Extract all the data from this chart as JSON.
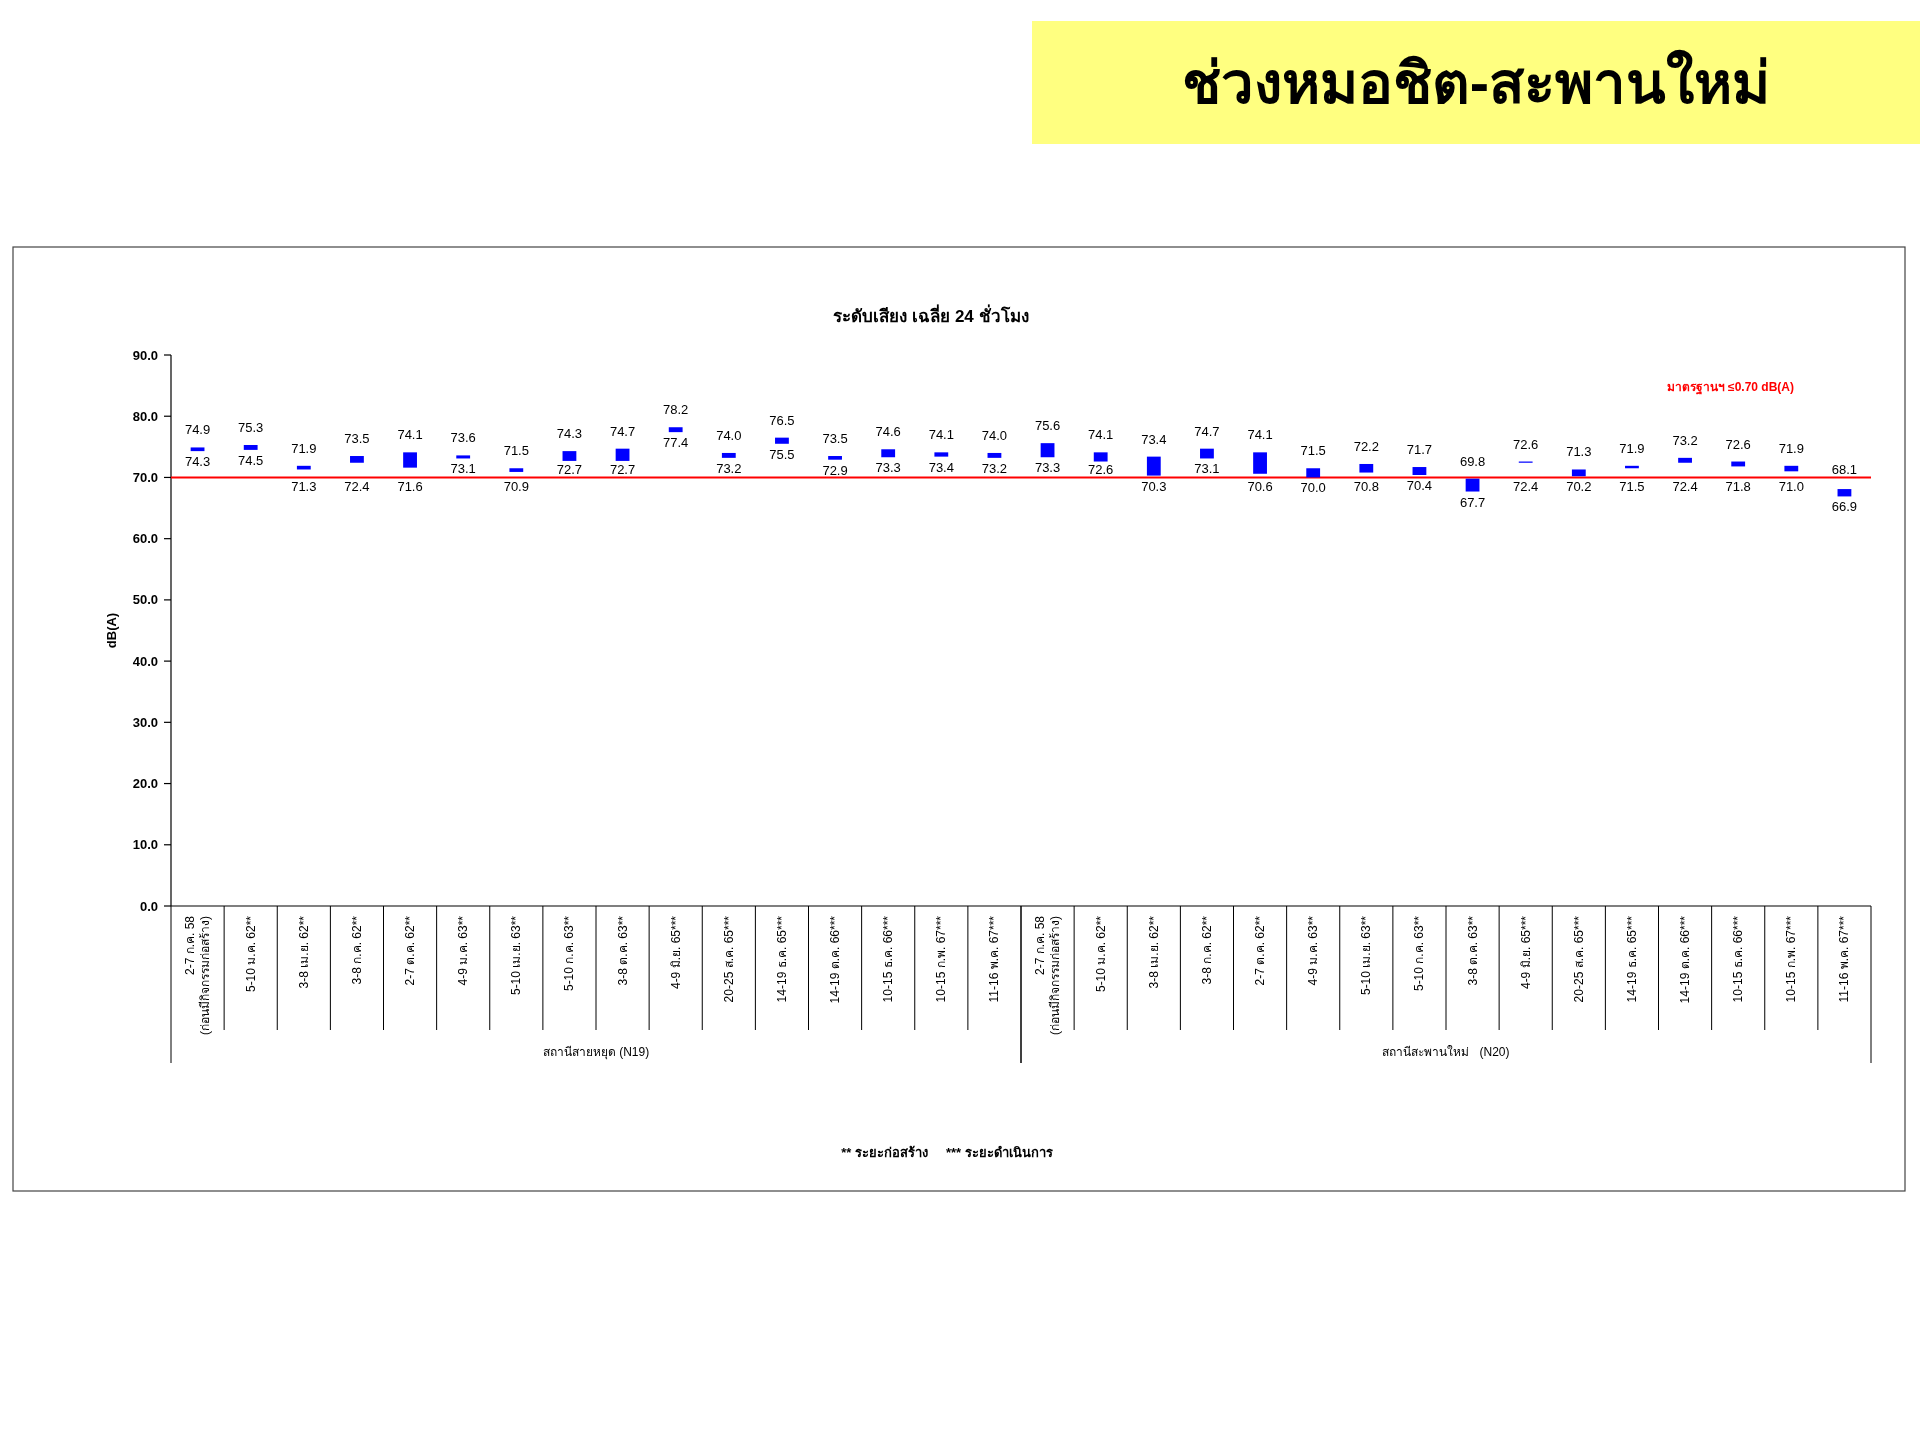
{
  "chart_data": [
    {
      "type": "bar",
      "subtitle": "ระดับเสียง เฉลี่ย 24 ชั่วโมง",
      "ylabel": "dB(A)",
      "xlabel": "สถานีสายหยุด (N19)",
      "categories": [
        "2-7 ก.ค. 58\n(ก่อนมีกิจกรรมก่อสร้าง)",
        "5-10 ม.ค. 62**",
        "3-8 เม.ย. 62**",
        "3-8 ก.ค. 62**",
        "2-7 ต.ค. 62**",
        "4-9 ม.ค. 63**",
        "5-10 เม.ย. 63**",
        "5-10 ก.ค. 63**",
        "3-8 ต.ค. 63**",
        "4-9 มิ.ย. 65***",
        "20-25 ส.ค. 65***",
        "14-19 ธ.ค. 65***",
        "14-19 ต.ค. 66***",
        "10-15 ธ.ค. 66***",
        "10-15 ก.พ. 67***",
        "11-16 พ.ค. 67***"
      ],
      "color": "#0000ff",
      "base": [
        74.3,
        74.5,
        71.3,
        72.4,
        71.6,
        73.1,
        70.9,
        72.7,
        72.7,
        77.4,
        73.2,
        75.5,
        72.9,
        73.3,
        73.4,
        73.2
      ],
      "values": [
        0.6,
        0.8,
        0.6,
        1.1,
        2.5,
        0.5,
        0.6,
        1.6,
        2.0,
        0.8,
        0.8,
        1.0,
        0.6,
        1.3,
        0.7,
        0.8
      ],
      "value_labels": [
        "74.9",
        "75.3",
        "71.9",
        "73.5",
        "74.1",
        "73.6",
        "71.5",
        "74.3",
        "74.7",
        "78.2",
        "74.0",
        "76.5",
        "73.5",
        "74.6",
        "74.1",
        "74.0"
      ],
      "ylim": [
        0,
        90
      ],
      "yticks": [
        {
          "value": 0,
          "label": "0.0"
        },
        {
          "value": 10,
          "label": "10.0"
        },
        {
          "value": 20,
          "label": "20.0"
        },
        {
          "value": 30,
          "label": "30.0"
        },
        {
          "value": 40,
          "label": "40.0"
        },
        {
          "value": 50,
          "label": "50.0"
        },
        {
          "value": 60,
          "label": "60.0"
        },
        {
          "value": 70,
          "label": "70.0"
        },
        {
          "value": 80,
          "label": "80.0"
        },
        {
          "value": 90,
          "label": "90.0"
        }
      ],
      "ref_lines": [
        {
          "axis": "y",
          "value": 70,
          "color": "#ff0000"
        }
      ],
      "annotations": [
        {
          "text": "74.3",
          "x": "2-7 ก.ค. 58\n(ก่อนมีกิจกรรมก่อสร้าง)",
          "y": 74.3
        },
        {
          "text": "74.5",
          "x": "5-10 ม.ค. 62**",
          "y": 74.5
        },
        {
          "text": "71.3",
          "x": "3-8 เม.ย. 62**",
          "y": 71.3
        },
        {
          "text": "72.4",
          "x": "3-8 ก.ค. 62**",
          "y": 72.4
        },
        {
          "text": "71.6",
          "x": "2-7 ต.ค. 62**",
          "y": 71.6
        },
        {
          "text": "73.1",
          "x": "4-9 ม.ค. 63**",
          "y": 73.1
        },
        {
          "text": "70.9",
          "x": "5-10 เม.ย. 63**",
          "y": 70.9
        },
        {
          "text": "72.7",
          "x": "5-10 ก.ค. 63**",
          "y": 72.7
        },
        {
          "text": "72.7",
          "x": "3-8 ต.ค. 63**",
          "y": 72.7
        },
        {
          "text": "77.4",
          "x": "4-9 มิ.ย. 65***",
          "y": 77.4
        },
        {
          "text": "73.2",
          "x": "20-25 ส.ค. 65***",
          "y": 73.2
        },
        {
          "text": "75.5",
          "x": "14-19 ธ.ค. 65***",
          "y": 75.5
        },
        {
          "text": "72.9",
          "x": "14-19 ต.ค. 66***",
          "y": 72.9
        },
        {
          "text": "73.3",
          "x": "10-15 ธ.ค. 66***",
          "y": 73.3
        },
        {
          "text": "73.4",
          "x": "10-15 ก.พ. 67***",
          "y": 73.4
        },
        {
          "text": "73.2",
          "x": "11-16 พ.ค. 67***",
          "y": 73.2
        },
        "** ระยะก่อสร้าง     *** ระยะดำเนินการ"
      ]
    },
    {
      "type": "bar",
      "title": "ช่วงหมอชิต-สะพานใหม่",
      "xlabel": "สถานีสะพานใหม่   (N20)",
      "tick_labels": "x",
      "categories": [
        "2-7 ก.ค. 58\n(ก่อนมีกิจกรรมก่อสร้าง)",
        "5-10 ม.ค. 62**",
        "3-8 เม.ย. 62**",
        "3-8 ก.ค. 62**",
        "2-7 ต.ค. 62**",
        "4-9 ม.ค. 63**",
        "5-10 เม.ย. 63**",
        "5-10 ก.ค. 63**",
        "3-8 ต.ค. 63**",
        "4-9 มิ.ย. 65***",
        "20-25 ส.ค. 65***",
        "14-19 ธ.ค. 65***",
        "14-19 ต.ค. 66***",
        "10-15 ธ.ค. 66***",
        "10-15 ก.พ. 67***",
        "11-16 พ.ค. 67***"
      ],
      "color": "#0000ff",
      "base": [
        73.3,
        72.6,
        70.3,
        73.1,
        70.6,
        70.0,
        70.8,
        70.4,
        67.7,
        72.4,
        70.2,
        71.5,
        72.4,
        71.8,
        71.0,
        66.9
      ],
      "values": [
        2.3,
        1.5,
        3.1,
        1.6,
        3.5,
        1.5,
        1.4,
        1.3,
        2.1,
        0.2,
        1.1,
        0.4,
        0.8,
        0.8,
        0.9,
        1.2
      ],
      "value_labels": [
        "75.6",
        "74.1",
        "73.4",
        "74.7",
        "74.1",
        "71.5",
        "72.2",
        "71.7",
        "69.8",
        "72.6",
        "71.3",
        "71.9",
        "73.2",
        "72.6",
        "71.9",
        "68.1"
      ],
      "ylim": [
        0,
        90
      ],
      "ref_lines": [
        {
          "axis": "y",
          "value": 70,
          "label": "มาตรฐานฯ ≤0.70 dB(A)",
          "color": "#ff0000"
        }
      ],
      "annotations": [
        {
          "text": "73.3",
          "x": "2-7 ก.ค. 58\n(ก่อนมีกิจกรรมก่อสร้าง)",
          "y": 73.3
        },
        {
          "text": "72.6",
          "x": "5-10 ม.ค. 62**",
          "y": 72.6
        },
        {
          "text": "70.3",
          "x": "3-8 เม.ย. 62**",
          "y": 70.3
        },
        {
          "text": "73.1",
          "x": "3-8 ก.ค. 62**",
          "y": 73.1
        },
        {
          "text": "70.6",
          "x": "2-7 ต.ค. 62**",
          "y": 70.6
        },
        {
          "text": "70.0",
          "x": "4-9 ม.ค. 63**",
          "y": 70.0
        },
        {
          "text": "70.8",
          "x": "5-10 เม.ย. 63**",
          "y": 70.8
        },
        {
          "text": "70.4",
          "x": "5-10 ก.ค. 63**",
          "y": 70.4
        },
        {
          "text": "67.7",
          "x": "3-8 ต.ค. 63**",
          "y": 67.7
        },
        {
          "text": "72.4",
          "x": "4-9 มิ.ย. 65***",
          "y": 72.4
        },
        {
          "text": "70.2",
          "x": "20-25 ส.ค. 65***",
          "y": 70.2
        },
        {
          "text": "71.5",
          "x": "14-19 ธ.ค. 65***",
          "y": 71.5
        },
        {
          "text": "72.4",
          "x": "14-19 ต.ค. 66***",
          "y": 72.4
        },
        {
          "text": "71.8",
          "x": "10-15 ธ.ค. 66***",
          "y": 71.8
        },
        {
          "text": "71.0",
          "x": "10-15 ก.พ. 67***",
          "y": 71.0
        },
        {
          "text": "66.9",
          "x": "11-16 พ.ค. 67***",
          "y": 66.9
        }
      ]
    }
  ]
}
